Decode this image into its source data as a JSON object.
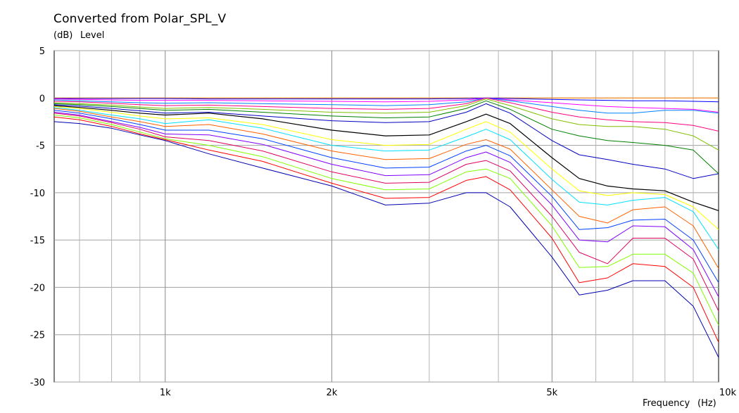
{
  "chart_data": {
    "type": "line",
    "title": "Converted from Polar_SPL_V",
    "ylabel": "Level",
    "yunit": "(dB)",
    "xlabel": "Frequency",
    "xunit": "(Hz)",
    "xscale": "log",
    "xlim": [
      630,
      10000
    ],
    "ylim": [
      -30,
      5
    ],
    "yticks": [
      5,
      0,
      -5,
      -10,
      -15,
      -20,
      -25,
      -30
    ],
    "ytick_labels": [
      "5",
      "0",
      "-5",
      "-10",
      "-15",
      "-20",
      "-25",
      "-30"
    ],
    "xticks": [
      1000,
      2000,
      5000,
      10000
    ],
    "xtick_labels": [
      "1k",
      "2k",
      "5k",
      "10k"
    ],
    "grid": true,
    "x": [
      630,
      700,
      800,
      900,
      1000,
      1200,
      1500,
      2000,
      2500,
      3000,
      3500,
      3800,
      4200,
      5000,
      5600,
      6300,
      7000,
      8000,
      9000,
      10000
    ],
    "series": [
      {
        "color": "#ff8000",
        "values": [
          0,
          0,
          0,
          0,
          0,
          0,
          0,
          0,
          0,
          0,
          0,
          0,
          0,
          0,
          0,
          0,
          0,
          0,
          0,
          0
        ]
      },
      {
        "color": "#0000ff",
        "values": [
          -0.05,
          -0.05,
          -0.05,
          -0.05,
          -0.05,
          -0.1,
          -0.1,
          -0.1,
          -0.1,
          -0.1,
          -0.05,
          0,
          -0.05,
          -0.15,
          -0.2,
          -0.25,
          -0.3,
          -0.3,
          -0.35,
          -0.4
        ]
      },
      {
        "color": "#ff00ff",
        "values": [
          -0.1,
          -0.15,
          -0.2,
          -0.25,
          -0.25,
          -0.25,
          -0.3,
          -0.35,
          -0.4,
          -0.35,
          -0.2,
          0,
          -0.2,
          -0.5,
          -0.7,
          -0.9,
          -1.0,
          -1.1,
          -1.2,
          -1.5
        ]
      },
      {
        "color": "#0080ff",
        "values": [
          -0.2,
          -0.3,
          -0.4,
          -0.5,
          -0.55,
          -0.5,
          -0.6,
          -0.7,
          -0.8,
          -0.7,
          -0.4,
          0,
          -0.3,
          -0.9,
          -1.3,
          -1.6,
          -1.6,
          -1.3,
          -1.3,
          -1.6
        ]
      },
      {
        "color": "#ff0080",
        "values": [
          -0.35,
          -0.4,
          -0.55,
          -0.7,
          -0.8,
          -0.75,
          -0.9,
          -1.1,
          -1.2,
          -1.1,
          -0.6,
          0,
          -0.5,
          -1.5,
          -2.0,
          -2.3,
          -2.5,
          -2.6,
          -2.9,
          -3.5
        ]
      },
      {
        "color": "#80c000",
        "values": [
          -0.5,
          -0.6,
          -0.75,
          -0.95,
          -1.1,
          -1.0,
          -1.2,
          -1.5,
          -1.6,
          -1.5,
          -0.8,
          -0.1,
          -0.8,
          -2.2,
          -2.8,
          -3.0,
          -3.0,
          -3.3,
          -4.0,
          -5.5
        ]
      },
      {
        "color": "#008000",
        "values": [
          -0.6,
          -0.7,
          -0.9,
          -1.1,
          -1.3,
          -1.2,
          -1.5,
          -1.9,
          -2.1,
          -2.0,
          -1.1,
          -0.3,
          -1.2,
          -3.3,
          -4.0,
          -4.5,
          -4.7,
          -5.0,
          -5.5,
          -8.0
        ]
      },
      {
        "color": "#0000c0",
        "values": [
          -0.7,
          -0.85,
          -1.1,
          -1.35,
          -1.6,
          -1.5,
          -1.9,
          -2.4,
          -2.6,
          -2.5,
          -1.5,
          -0.6,
          -1.6,
          -4.5,
          -6.0,
          -6.5,
          -7.0,
          -7.5,
          -8.5,
          -8.0
        ]
      },
      {
        "color": "#000000",
        "values": [
          -0.8,
          -1.0,
          -1.3,
          -1.6,
          -1.8,
          -1.6,
          -2.2,
          -3.4,
          -4.0,
          -3.9,
          -2.5,
          -1.7,
          -2.7,
          -6.3,
          -8.5,
          -9.3,
          -9.6,
          -9.8,
          -11.0,
          -11.9
        ]
      },
      {
        "color": "#ffff00",
        "values": [
          -0.9,
          -1.1,
          -1.5,
          -1.9,
          -2.2,
          -2.1,
          -2.8,
          -4.4,
          -5.0,
          -4.9,
          -3.3,
          -2.5,
          -3.6,
          -7.5,
          -9.8,
          -10.3,
          -10.0,
          -10.2,
          -11.5,
          -13.9
        ]
      },
      {
        "color": "#00e0ff",
        "values": [
          -1.0,
          -1.3,
          -1.8,
          -2.2,
          -2.7,
          -2.3,
          -3.2,
          -5.0,
          -5.6,
          -5.5,
          -4.1,
          -3.3,
          -4.4,
          -8.6,
          -11.0,
          -11.3,
          -10.8,
          -10.5,
          -12.0,
          -16.0
        ]
      },
      {
        "color": "#ff6000",
        "values": [
          -1.1,
          -1.4,
          -2.0,
          -2.5,
          -3.0,
          -2.8,
          -3.8,
          -5.6,
          -6.5,
          -6.4,
          -4.9,
          -4.4,
          -5.4,
          -9.7,
          -12.5,
          -13.2,
          -11.8,
          -11.5,
          -13.5,
          -18.0
        ]
      },
      {
        "color": "#0040ff",
        "values": [
          -1.3,
          -1.6,
          -2.2,
          -2.8,
          -3.4,
          -3.4,
          -4.3,
          -6.3,
          -7.4,
          -7.3,
          -5.6,
          -5.0,
          -6.1,
          -10.4,
          -13.9,
          -13.7,
          -12.9,
          -12.8,
          -15.0,
          -19.5
        ]
      },
      {
        "color": "#8000ff",
        "values": [
          -1.5,
          -1.8,
          -2.5,
          -3.1,
          -3.8,
          -3.9,
          -4.9,
          -7.0,
          -8.2,
          -8.1,
          -6.3,
          -5.7,
          -6.8,
          -11.3,
          -15.0,
          -15.2,
          -13.5,
          -13.6,
          -16.0,
          -21.0
        ]
      },
      {
        "color": "#e00060",
        "values": [
          -1.6,
          -1.9,
          -2.6,
          -3.3,
          -4.1,
          -4.5,
          -5.6,
          -7.8,
          -9.0,
          -8.9,
          -7.0,
          -6.6,
          -7.7,
          -12.5,
          -16.3,
          -17.5,
          -14.8,
          -14.8,
          -17.0,
          -22.5
        ]
      },
      {
        "color": "#80ff00",
        "values": [
          -1.8,
          -2.1,
          -2.8,
          -3.6,
          -4.3,
          -5.0,
          -6.2,
          -8.5,
          -9.7,
          -9.6,
          -7.8,
          -7.5,
          -8.5,
          -13.5,
          -17.9,
          -17.8,
          -16.5,
          -16.5,
          -18.5,
          -24.0
        ]
      },
      {
        "color": "#ff0000",
        "values": [
          -2.0,
          -2.3,
          -3.0,
          -3.8,
          -4.4,
          -5.5,
          -6.7,
          -9.0,
          -10.6,
          -10.5,
          -8.7,
          -8.3,
          -9.7,
          -14.8,
          -19.5,
          -19.0,
          -17.5,
          -17.8,
          -20.0,
          -25.8
        ]
      },
      {
        "color": "#0000b0",
        "values": [
          -2.5,
          -2.7,
          -3.2,
          -3.9,
          -4.5,
          -5.9,
          -7.4,
          -9.3,
          -11.3,
          -11.1,
          -10.0,
          -10.0,
          -11.5,
          -16.8,
          -20.8,
          -20.3,
          -19.3,
          -19.3,
          -22.0,
          -27.4
        ]
      }
    ]
  }
}
